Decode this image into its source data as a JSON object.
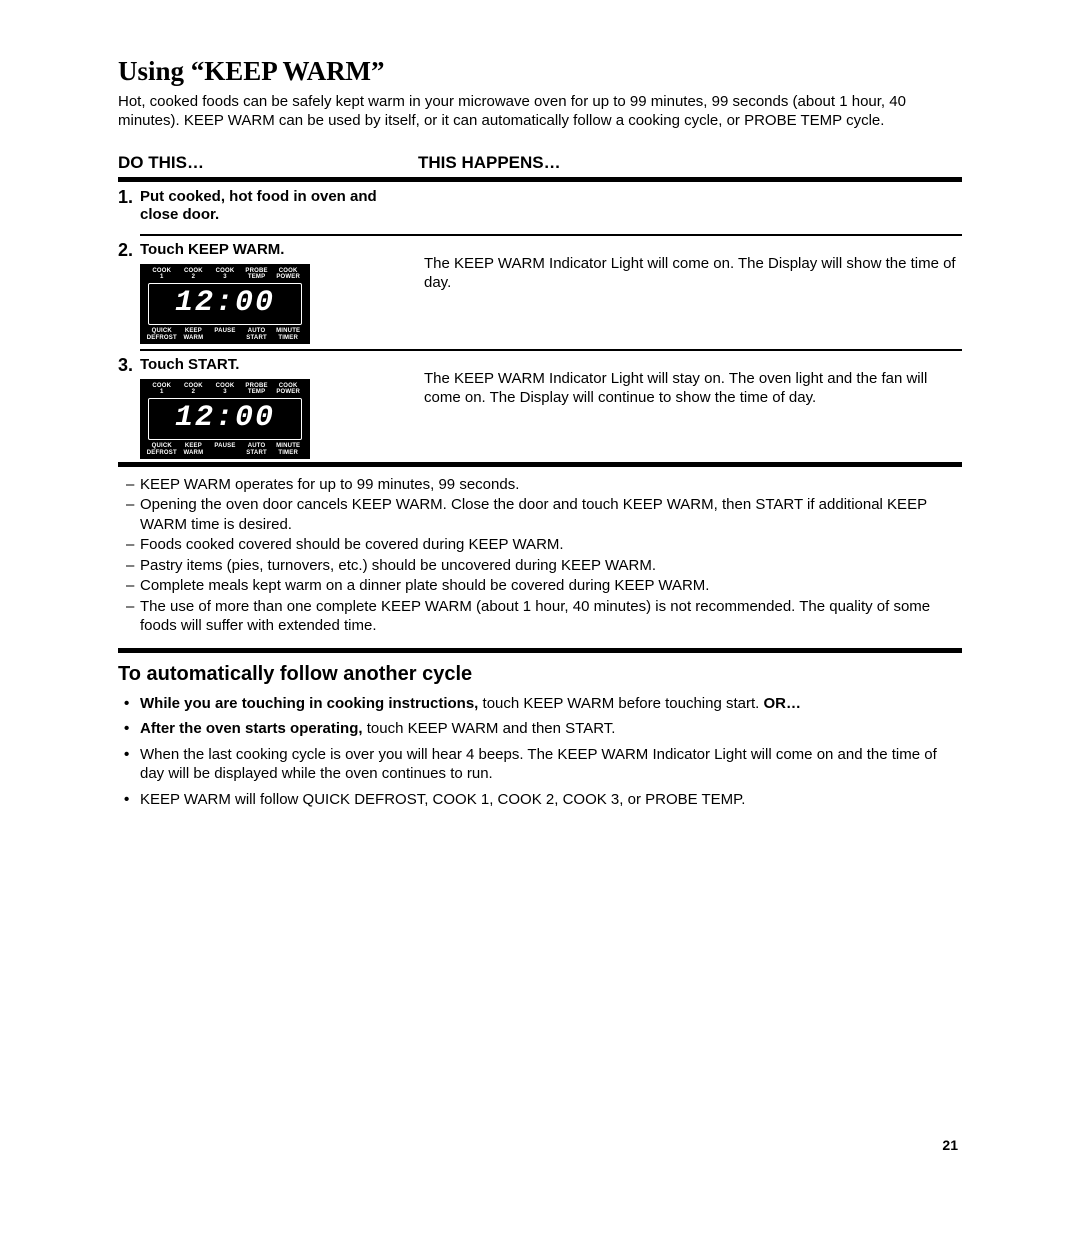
{
  "title": "Using “KEEP WARM”",
  "intro": "Hot, cooked foods can be safely kept warm in your microwave oven for up to 99 minutes, 99 seconds (about 1 hour, 40 minutes). KEEP WARM can be used by itself, or it can automatically follow a cooking cycle, or PROBE TEMP cycle.",
  "headers": {
    "left": "DO THIS…",
    "right": "THIS HAPPENS…"
  },
  "panel": {
    "top": [
      "COOK 1",
      "COOK 2",
      "COOK 3",
      "PROBE TEMP",
      "COOK POWER"
    ],
    "display": "12:00",
    "bottom": [
      "QUICK DEFROST",
      "KEEP WARM",
      "PAUSE",
      "AUTO START",
      "MINUTE TIMER"
    ]
  },
  "steps": [
    {
      "num": "1.",
      "action": "Put cooked, hot food in oven and close door.",
      "happens": "",
      "show_panel": false
    },
    {
      "num": "2.",
      "action": "Touch KEEP WARM.",
      "happens": "The KEEP WARM Indicator Light will come on. The Display will show the time of day.",
      "show_panel": true
    },
    {
      "num": "3.",
      "action": "Touch START.",
      "happens": "The KEEP WARM Indicator Light will stay on. The oven light and the fan will come on. The Display will continue to show the time of day.",
      "show_panel": true
    }
  ],
  "notes": [
    "KEEP WARM operates for up to 99 minutes, 99 seconds.",
    "Opening the oven door cancels KEEP WARM. Close the door and touch KEEP WARM, then START if additional KEEP WARM time is desired.",
    "Foods cooked covered should be covered during KEEP WARM.",
    "Pastry items (pies, turnovers, etc.) should be uncovered during KEEP WARM.",
    "Complete meals kept warm on a dinner plate should be covered during KEEP WARM.",
    "The use of more than one complete KEEP WARM (about 1 hour, 40 minutes) is not recommended. The quality of some foods will suffer with extended time."
  ],
  "auto": {
    "heading": "To automatically follow another cycle",
    "items": [
      {
        "bold": "While you are touching in cooking instructions,",
        "rest": " touch KEEP WARM before touching start. ",
        "or": "OR…"
      },
      {
        "bold": "After the oven starts operating,",
        "rest": " touch KEEP WARM and then START."
      },
      {
        "bold": "",
        "rest": "When the last cooking cycle is over you will hear 4 beeps. The KEEP WARM Indicator Light will come on and the time of day will be displayed while the oven continues to run."
      },
      {
        "bold": "",
        "rest": "KEEP WARM will follow QUICK DEFROST, COOK 1, COOK 2, COOK 3, or PROBE TEMP."
      }
    ]
  },
  "pagenum": "21"
}
